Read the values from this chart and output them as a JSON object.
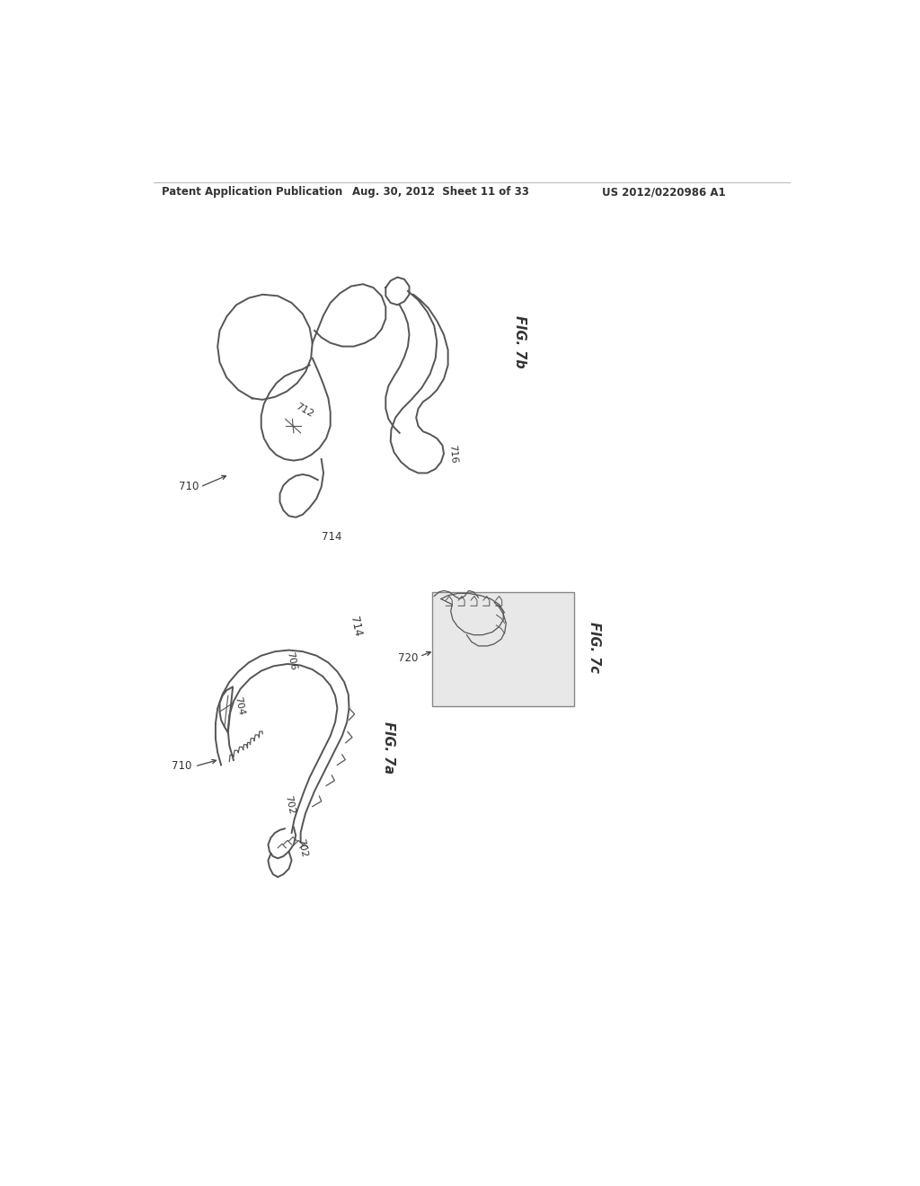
{
  "background_color": "#ffffff",
  "page_header_left": "Patent Application Publication",
  "page_header_center": "Aug. 30, 2012  Sheet 11 of 33",
  "page_header_right": "US 2012/0220986 A1",
  "fig7b_label": "FIG. 7b",
  "fig7a_label": "FIG. 7a",
  "fig7c_label": "FIG. 7c",
  "ref_710_top": "710",
  "ref_712": "712",
  "ref_714": "714",
  "ref_716": "716",
  "ref_710_bottom": "710",
  "ref_702a": "702",
  "ref_702b": "702",
  "ref_704": "704",
  "ref_706": "706",
  "ref_720": "720",
  "line_color": "#555555",
  "header_color": "#333333"
}
